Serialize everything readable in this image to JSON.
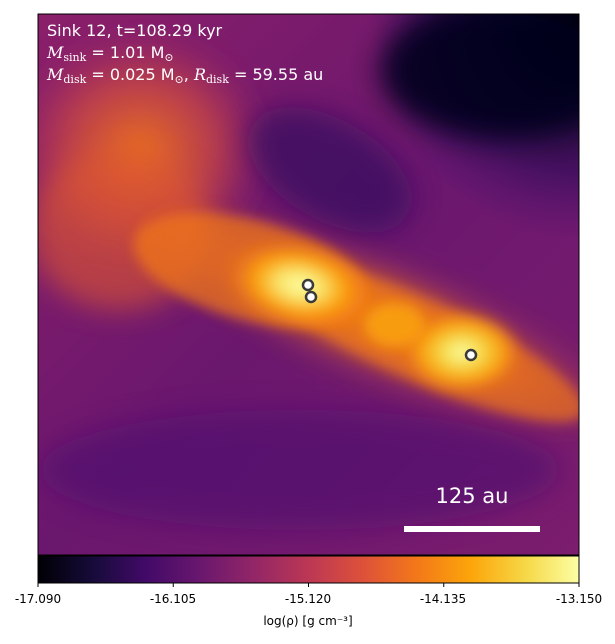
{
  "annotation": {
    "line1": "Sink 12, t=108.29 kyr",
    "m_sink_symbol": "M",
    "m_sink_sub": "sink",
    "m_sink_value": " = 1.01 M",
    "m_sink_unit_sub": "⊙",
    "m_disk_symbol": "M",
    "m_disk_sub": "disk",
    "m_disk_value": " = 0.025 M",
    "m_disk_unit_sub": "⊙",
    "separator": ", ",
    "r_disk_symbol": "R",
    "r_disk_sub": "disk",
    "r_disk_value": " = 59.55 au"
  },
  "scale_bar": {
    "label": "125 au"
  },
  "colorbar": {
    "colormap": "inferno",
    "ticks": [
      "-17.090",
      "-16.105",
      "-15.120",
      "-14.135",
      "-13.150"
    ],
    "label": "log(ρ) [g cm⁻³]"
  },
  "markers": {
    "count": 3,
    "description": "sink particle circles"
  },
  "colors": {
    "background": "#ffffff",
    "text_on_image": "#ffffff",
    "marker_fill": "#ffffff",
    "marker_edge": "#3a3a3a"
  }
}
